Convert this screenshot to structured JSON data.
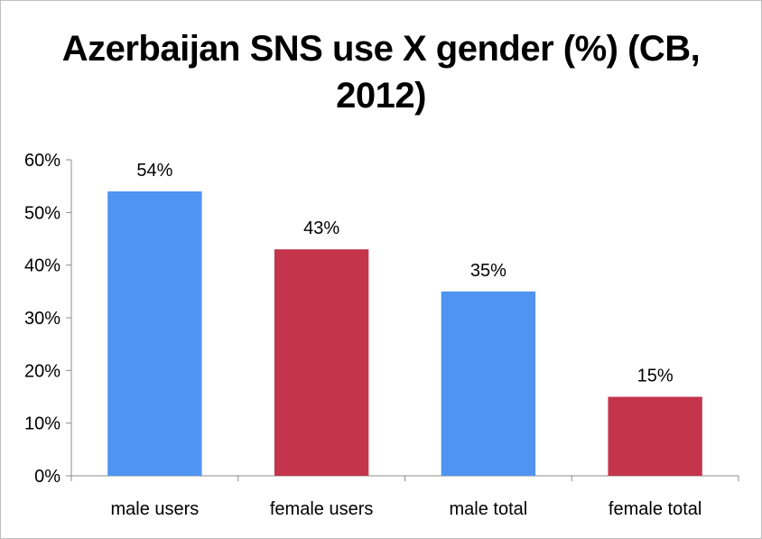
{
  "chart_data": {
    "type": "bar",
    "title_line1": "Azerbaijan SNS use X gender (%) (CB,",
    "title_line2": "2012)",
    "categories": [
      "male users",
      "female users",
      "male total",
      "female total"
    ],
    "values": [
      54,
      43,
      35,
      15
    ],
    "data_labels": [
      "54%",
      "43%",
      "35%",
      "15%"
    ],
    "bar_colors": [
      "#4f94f0",
      "#c4344b",
      "#4f94f0",
      "#c4344b"
    ],
    "ylim": [
      0,
      60
    ],
    "yticks": [
      0,
      10,
      20,
      30,
      40,
      50,
      60
    ],
    "ytick_labels": [
      "0%",
      "10%",
      "20%",
      "30%",
      "40%",
      "50%",
      "60%"
    ],
    "grid": false,
    "legend": "none"
  }
}
